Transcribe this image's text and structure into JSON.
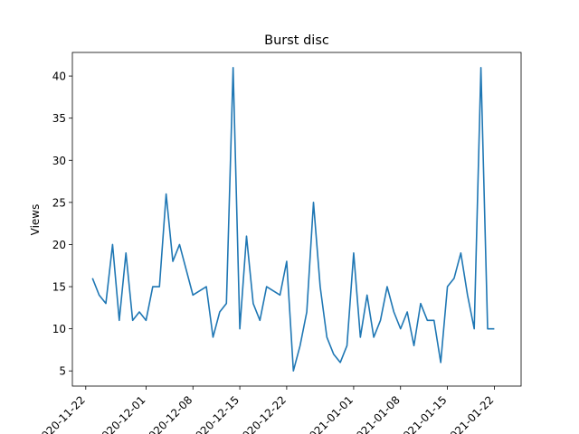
{
  "chart_data": {
    "type": "line",
    "title": "Burst disc",
    "xlabel": "",
    "ylabel": "Views",
    "x_axis": "date",
    "xlim": [
      "2020-11-20",
      "2021-01-26"
    ],
    "ylim": [
      3.2,
      42.8
    ],
    "x_tick_labels": [
      {
        "date": "2020-11-22",
        "label": "2020-11-22"
      },
      {
        "date": "2020-12-01",
        "label": "2020-12-01"
      },
      {
        "date": "2020-12-08",
        "label": "2020-12-08"
      },
      {
        "date": "2020-12-15",
        "label": "2020-12-15"
      },
      {
        "date": "2020-12-22",
        "label": "2020-12-22"
      },
      {
        "date": "2021-01-01",
        "label": "2021-01-01"
      },
      {
        "date": "2021-01-08",
        "label": "2021-01-08"
      },
      {
        "date": "2021-01-15",
        "label": "2021-01-15"
      },
      {
        "date": "2021-01-22",
        "label": "2021-01-22"
      }
    ],
    "y_ticks": [
      5,
      10,
      15,
      20,
      25,
      30,
      35,
      40
    ],
    "grid": false,
    "legend": "none",
    "line_color": "#1f77b4",
    "series": [
      {
        "x": [
          "2020-11-23",
          "2020-11-24",
          "2020-11-25",
          "2020-11-26",
          "2020-11-27",
          "2020-11-28",
          "2020-11-29",
          "2020-11-30",
          "2020-12-01",
          "2020-12-02",
          "2020-12-03",
          "2020-12-04",
          "2020-12-05",
          "2020-12-06",
          "2020-12-08",
          "2020-12-10",
          "2020-12-11",
          "2020-12-12",
          "2020-12-13",
          "2020-12-14",
          "2020-12-15",
          "2020-12-16",
          "2020-12-17",
          "2020-12-18",
          "2020-12-19",
          "2020-12-21",
          "2020-12-22",
          "2020-12-23",
          "2020-12-24",
          "2020-12-25",
          "2020-12-26",
          "2020-12-27",
          "2020-12-28",
          "2020-12-29",
          "2020-12-30",
          "2020-12-31",
          "2021-01-01",
          "2021-01-02",
          "2021-01-03",
          "2021-01-04",
          "2021-01-05",
          "2021-01-06",
          "2021-01-07",
          "2021-01-08",
          "2021-01-09",
          "2021-01-10",
          "2021-01-11",
          "2021-01-12",
          "2021-01-13",
          "2021-01-14",
          "2021-01-15",
          "2021-01-16",
          "2021-01-17",
          "2021-01-18",
          "2021-01-19",
          "2021-01-20",
          "2021-01-21",
          "2021-01-22",
          "2021-01-23",
          "2021-01-24"
        ],
        "values": [
          16,
          14,
          13,
          20,
          11,
          19,
          11,
          12,
          11,
          15,
          15,
          26,
          18,
          20,
          14,
          15,
          9,
          12,
          13,
          41,
          10,
          21,
          13,
          11,
          15,
          14,
          18,
          5,
          8,
          12,
          25,
          15,
          9,
          7,
          6,
          8,
          19,
          9,
          14,
          9,
          11,
          15,
          12,
          10,
          12,
          8,
          13,
          11,
          11,
          6,
          15,
          16,
          19,
          14,
          10,
          41,
          10,
          10,
          null,
          null
        ]
      }
    ]
  }
}
